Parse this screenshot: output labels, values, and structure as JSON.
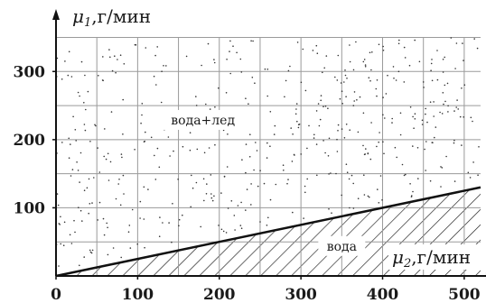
{
  "chart_data": {
    "type": "line",
    "x_axis": {
      "label_var": "μ",
      "label_sub": "2",
      "label_unit": ",г/мин",
      "ticks": [
        0,
        100,
        200,
        300,
        400,
        500
      ],
      "range": [
        0,
        520
      ]
    },
    "y_axis": {
      "label_var": "μ",
      "label_sub": "1",
      "label_unit": ",г/мин",
      "ticks": [
        100,
        200,
        300
      ],
      "range": [
        0,
        350
      ]
    },
    "grid": true,
    "grid_step_x": 50,
    "grid_step_y": 50,
    "series": [
      {
        "x": [
          0,
          520
        ],
        "y": [
          0,
          130
        ]
      }
    ],
    "regions": [
      {
        "label": "вода+лед",
        "position": "above",
        "label_at": [
          180,
          225
        ],
        "fill": "dotted"
      },
      {
        "label": "вода",
        "position": "below",
        "label_at": [
          350,
          40
        ],
        "fill": "hatched"
      }
    ]
  }
}
